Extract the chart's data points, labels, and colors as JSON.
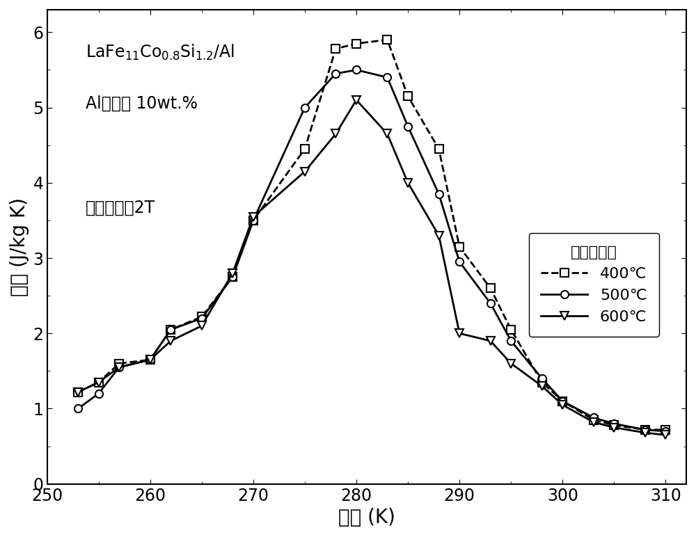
{
  "annotation1_latex": "LaFe$_{11}$Co$_{0.8}$Si$_{1.2}$/Al",
  "annotation2": "Al含量： 10wt.%",
  "annotation3": "磁场变化：2T",
  "legend_title": "热压温度：",
  "xlabel": "温度 (K)",
  "ylabel": "熵变 (J/kg K)",
  "xlim": [
    250,
    312
  ],
  "ylim": [
    0,
    6.3
  ],
  "xticks": [
    250,
    260,
    270,
    280,
    290,
    300,
    310
  ],
  "yticks": [
    0,
    1,
    2,
    3,
    4,
    5,
    6
  ],
  "series_400": {
    "x": [
      253,
      255,
      257,
      260,
      262,
      265,
      268,
      270,
      275,
      278,
      280,
      283,
      285,
      288,
      290,
      293,
      295,
      298,
      300,
      303,
      305,
      308,
      310
    ],
    "y": [
      1.22,
      1.35,
      1.6,
      1.65,
      2.05,
      2.22,
      2.75,
      3.5,
      4.45,
      5.78,
      5.85,
      5.9,
      5.15,
      4.45,
      3.15,
      2.6,
      2.05,
      1.35,
      1.1,
      0.85,
      0.78,
      0.72,
      0.72
    ],
    "marker": "s",
    "linestyle": "--",
    "label": "400℃"
  },
  "series_500": {
    "x": [
      253,
      255,
      257,
      260,
      262,
      265,
      268,
      270,
      275,
      278,
      280,
      283,
      285,
      288,
      290,
      293,
      295,
      298,
      300,
      303,
      305,
      308,
      310
    ],
    "y": [
      1.0,
      1.2,
      1.55,
      1.65,
      2.05,
      2.2,
      2.75,
      3.5,
      5.0,
      5.45,
      5.5,
      5.4,
      4.75,
      3.85,
      2.95,
      2.4,
      1.9,
      1.4,
      1.1,
      0.88,
      0.8,
      0.72,
      0.7
    ],
    "marker": "o",
    "linestyle": "-",
    "label": "500℃"
  },
  "series_600": {
    "x": [
      253,
      255,
      257,
      260,
      262,
      265,
      268,
      270,
      275,
      278,
      280,
      283,
      285,
      288,
      290,
      293,
      295,
      298,
      300,
      303,
      305,
      308,
      310
    ],
    "y": [
      1.22,
      1.35,
      1.55,
      1.65,
      1.9,
      2.1,
      2.8,
      3.55,
      4.15,
      4.65,
      5.1,
      4.65,
      4.0,
      3.3,
      2.0,
      1.9,
      1.6,
      1.3,
      1.05,
      0.82,
      0.75,
      0.68,
      0.65
    ],
    "marker": "v",
    "linestyle": "-",
    "label": "600℃"
  },
  "line_color": "#000000",
  "background_color": "#ffffff",
  "font_size_label": 20,
  "font_size_tick": 17,
  "font_size_legend": 16,
  "font_size_annotation": 17,
  "markersize": 8,
  "linewidth": 2.0
}
